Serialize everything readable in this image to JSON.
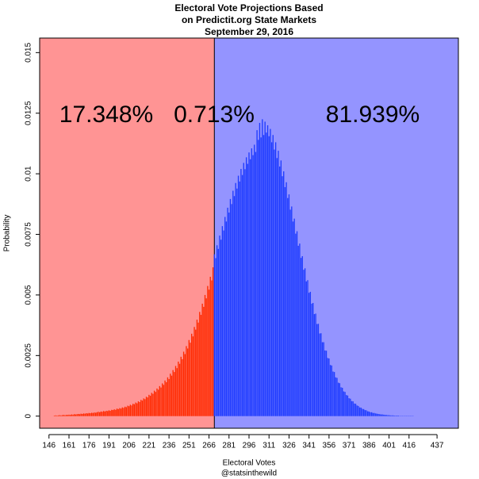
{
  "chart_data": {
    "type": "histogram",
    "title": [
      "Electoral Vote Projections Based",
      "on Predictit.org State Markets"
    ],
    "subtitle": "September 29, 2016",
    "xlabel": "Electoral Votes",
    "ylabel": "Probability",
    "caption": "@statsinthewild",
    "xlim": [
      139,
      453
    ],
    "ylim": [
      -0.0005,
      0.0156
    ],
    "xticks": [
      146,
      161,
      176,
      191,
      206,
      221,
      236,
      251,
      266,
      281,
      296,
      311,
      326,
      341,
      356,
      371,
      386,
      401,
      416,
      437
    ],
    "yticks": [
      0,
      0.0025,
      0.005,
      0.0075,
      0.01,
      0.0125,
      0.015
    ],
    "regions": [
      {
        "x0": 139,
        "x1": 270,
        "color": "#ff9494"
      },
      {
        "x0": 270,
        "x1": 453,
        "color": "#9494ff"
      }
    ],
    "annotations": [
      "17.348%",
      "0.713%",
      "81.939%"
    ],
    "series": [
      {
        "color": "#ff2a00",
        "x": [
          150,
          151,
          152,
          153,
          154,
          155,
          156,
          157,
          158,
          159,
          160,
          161,
          162,
          163,
          164,
          165,
          166,
          167,
          168,
          169,
          170,
          171,
          172,
          173,
          174,
          175,
          176,
          177,
          178,
          179,
          180,
          181,
          182,
          183,
          184,
          185,
          186,
          187,
          188,
          189,
          190,
          191,
          192,
          193,
          194,
          195,
          196,
          197,
          198,
          199,
          200,
          201,
          202,
          203,
          204,
          205,
          206,
          207,
          208,
          209,
          210,
          211,
          212,
          213,
          214,
          215,
          216,
          217,
          218,
          219,
          220,
          221,
          222,
          223,
          224,
          225,
          226,
          227,
          228,
          229,
          230,
          231,
          232,
          233,
          234,
          235,
          236,
          237,
          238,
          239,
          240,
          241,
          242,
          243,
          244,
          245,
          246,
          247,
          248,
          249,
          250,
          251,
          252,
          253,
          254,
          255,
          256,
          257,
          258,
          259,
          260,
          261,
          262,
          263,
          264,
          265,
          266,
          267,
          268,
          269
        ],
        "values": [
          2e-05,
          3e-05,
          2e-05,
          3e-05,
          4e-05,
          3e-05,
          4e-05,
          5e-05,
          4e-05,
          5e-05,
          5e-05,
          6e-05,
          5e-05,
          7e-05,
          6e-05,
          8e-05,
          7e-05,
          8e-05,
          9e-05,
          8e-05,
          0.0001,
          9e-05,
          0.00011,
          0.0001,
          0.00012,
          0.00011,
          0.00013,
          0.00012,
          0.00014,
          0.00013,
          0.00015,
          0.00014,
          0.00016,
          0.00018,
          0.00016,
          0.00019,
          0.00018,
          0.00021,
          0.00019,
          0.00022,
          0.00021,
          0.00024,
          0.00022,
          0.00026,
          0.00025,
          0.00028,
          0.00026,
          0.00031,
          0.00029,
          0.00033,
          0.00031,
          0.00036,
          0.00034,
          0.00039,
          0.00037,
          0.00043,
          0.00041,
          0.00047,
          0.00044,
          0.00051,
          0.00049,
          0.00056,
          0.00053,
          0.00061,
          0.00058,
          0.00067,
          0.00064,
          0.00073,
          0.0007,
          0.0008,
          0.00077,
          0.00088,
          0.00084,
          0.00096,
          0.00092,
          0.00105,
          0.001,
          0.00114,
          0.00109,
          0.00124,
          0.00118,
          0.00135,
          0.00129,
          0.00147,
          0.0014,
          0.0016,
          0.00153,
          0.00175,
          0.00167,
          0.0019,
          0.00182,
          0.00207,
          0.00198,
          0.00225,
          0.00216,
          0.00245,
          0.00235,
          0.00266,
          0.00256,
          0.00289,
          0.00279,
          0.00314,
          0.00303,
          0.0034,
          0.00329,
          0.00368,
          0.00357,
          0.00398,
          0.00386,
          0.0043,
          0.00418,
          0.00464,
          0.00451,
          0.005,
          0.00486,
          0.00537,
          0.00522,
          0.00575,
          0.0056,
          0.00614
        ]
      },
      {
        "color": "#1f3cff",
        "x": [
          270,
          271,
          272,
          273,
          274,
          275,
          276,
          277,
          278,
          279,
          280,
          281,
          282,
          283,
          284,
          285,
          286,
          287,
          288,
          289,
          290,
          291,
          292,
          293,
          294,
          295,
          296,
          297,
          298,
          299,
          300,
          301,
          302,
          303,
          304,
          305,
          306,
          307,
          308,
          309,
          310,
          311,
          312,
          313,
          314,
          315,
          316,
          317,
          318,
          319,
          320,
          321,
          322,
          323,
          324,
          325,
          326,
          327,
          328,
          329,
          330,
          331,
          332,
          333,
          334,
          335,
          336,
          337,
          338,
          339,
          340,
          341,
          342,
          343,
          344,
          345,
          346,
          347,
          348,
          349,
          350,
          351,
          352,
          353,
          354,
          355,
          356,
          357,
          358,
          359,
          360,
          361,
          362,
          363,
          364,
          365,
          366,
          367,
          368,
          369,
          370,
          371,
          372,
          373,
          374,
          375,
          376,
          377,
          378,
          379,
          380,
          381,
          382,
          383,
          384,
          385,
          386,
          387,
          388,
          389,
          390,
          391,
          392,
          393,
          394,
          395,
          396,
          397,
          398,
          399,
          400,
          401,
          402,
          403,
          404,
          405,
          406,
          407,
          408,
          409,
          410,
          411,
          412,
          413,
          414,
          415,
          416,
          417,
          418,
          419
        ],
        "values": [
          0.00668,
          0.00652,
          0.00705,
          0.0069,
          0.00745,
          0.00728,
          0.00784,
          0.00766,
          0.00822,
          0.00803,
          0.0086,
          0.0084,
          0.00896,
          0.00875,
          0.0093,
          0.00908,
          0.00962,
          0.00939,
          0.00992,
          0.00968,
          0.0102,
          0.00995,
          0.01045,
          0.01019,
          0.01068,
          0.01041,
          0.01088,
          0.0106,
          0.01105,
          0.01077,
          0.0112,
          0.0109,
          0.0118,
          0.0114,
          0.0121,
          0.0115,
          0.01225,
          0.0116,
          0.01215,
          0.0117,
          0.012,
          0.01155,
          0.01185,
          0.0113,
          0.0116,
          0.011,
          0.0113,
          0.01065,
          0.01095,
          0.0103,
          0.01055,
          0.0099,
          0.0101,
          0.00945,
          0.00965,
          0.009,
          0.00915,
          0.00852,
          0.00865,
          0.00803,
          0.00815,
          0.00753,
          0.00763,
          0.00703,
          0.00712,
          0.00653,
          0.0066,
          0.00604,
          0.0061,
          0.00556,
          0.00561,
          0.00509,
          0.00513,
          0.00464,
          0.00467,
          0.00421,
          0.00423,
          0.0038,
          0.00381,
          0.00341,
          0.00342,
          0.00305,
          0.00305,
          0.00271,
          0.0027,
          0.0024,
          0.00238,
          0.00211,
          0.00209,
          0.00184,
          0.00182,
          0.0016,
          0.00158,
          0.00138,
          0.00136,
          0.00119,
          0.00117,
          0.00102,
          0.001,
          0.00087,
          0.00085,
          0.00074,
          0.00072,
          0.00062,
          0.00061,
          0.00052,
          0.00051,
          0.00044,
          0.00042,
          0.00036,
          0.00035,
          0.0003,
          0.00029,
          0.00025,
          0.00024,
          0.0002,
          0.00019,
          0.00016,
          0.00016,
          0.00013,
          0.00013,
          0.00011,
          0.0001,
          9e-05,
          8e-05,
          7e-05,
          7e-05,
          6e-05,
          5e-05,
          5e-05,
          4e-05,
          4e-05,
          3e-05,
          3e-05,
          3e-05,
          2e-05,
          2e-05,
          2e-05,
          2e-05,
          1e-05,
          1e-05,
          1e-05,
          1e-05,
          1e-05,
          1e-05,
          1e-05,
          1e-05,
          1e-05,
          1e-05,
          1e-05
        ]
      }
    ]
  }
}
